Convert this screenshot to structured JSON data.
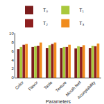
{
  "chart_data": {
    "type": "bar",
    "x_label": "Parameters",
    "categories": [
      "Color",
      "Flavor",
      "Taste",
      "Texture",
      "Mouth feel",
      "Acceptability"
    ],
    "series": [
      {
        "name": "T₀",
        "color": "#7b1c1c",
        "values": [
          6.4,
          6.9,
          6.7,
          6.7,
          6.6,
          6.7
        ]
      },
      {
        "name": "T₁",
        "color": "#a9c83c",
        "values": [
          6.9,
          7.1,
          7.3,
          6.9,
          7.1,
          7.2
        ]
      },
      {
        "name": "T₂",
        "color": "#8e1f1f",
        "values": [
          7.4,
          7.2,
          7.6,
          6.9,
          6.9,
          7.1
        ]
      },
      {
        "name": "T₃",
        "color": "#f08c1e",
        "values": [
          7.6,
          7.9,
          7.9,
          7.4,
          7.3,
          7.7
        ]
      }
    ],
    "ylim": [
      0,
      10
    ],
    "yticks": [
      0,
      2,
      4,
      6,
      8,
      10
    ],
    "grid": false,
    "legend": "top"
  }
}
